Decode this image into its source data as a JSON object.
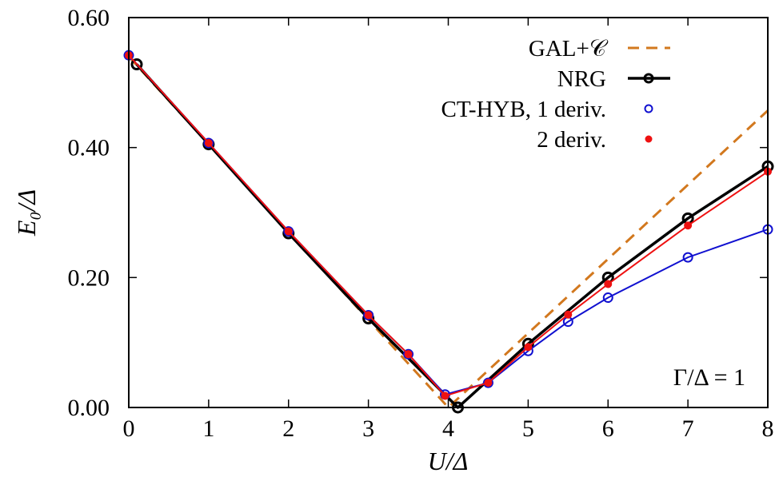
{
  "chart_data": {
    "type": "line",
    "title": "",
    "xlabel": "U/Δ",
    "ylabel": "E₀/Δ",
    "xlim": [
      0,
      8
    ],
    "ylim": [
      0,
      0.6
    ],
    "xticks": [
      0,
      1,
      2,
      3,
      4,
      5,
      6,
      7,
      8
    ],
    "xtick_labels": [
      "0",
      "1",
      "2",
      "3",
      "4",
      "5",
      "6",
      "7",
      "8"
    ],
    "yticks": [
      0,
      0.2,
      0.4,
      0.6
    ],
    "ytick_labels": [
      "0.00",
      "0.20",
      "0.40",
      "0.60"
    ],
    "grid": false,
    "legend_position": "top-right",
    "annotation": "Γ/Δ = 1",
    "series": [
      {
        "name": "GAL+𝒞",
        "style": "dashed",
        "color": "#d2781e",
        "markers": "none",
        "x": [
          0,
          4.0,
          8
        ],
        "y": [
          0.54,
          0.0,
          0.457
        ]
      },
      {
        "name": "NRG",
        "style": "solid-thick",
        "color": "#000000",
        "markers": "open-circle",
        "x": [
          0.1,
          1,
          2,
          3,
          4.12,
          5,
          6,
          7,
          8
        ],
        "y": [
          0.528,
          0.405,
          0.268,
          0.137,
          0.0,
          0.098,
          0.2,
          0.291,
          0.371
        ]
      },
      {
        "name": "CT-HYB, 1 deriv.",
        "style": "solid-thin",
        "color": "#1010d0",
        "markers": "open-circle-small",
        "x": [
          0,
          1,
          2,
          3,
          3.5,
          3.96,
          4.5,
          5,
          5.5,
          6,
          7,
          8
        ],
        "y": [
          0.542,
          0.407,
          0.271,
          0.142,
          0.082,
          0.02,
          0.038,
          0.087,
          0.132,
          0.169,
          0.231,
          0.274
        ]
      },
      {
        "name": "2 deriv.",
        "style": "solid-thin",
        "color": "#ee1111",
        "markers": "filled-circle",
        "x": [
          0,
          1,
          2,
          3,
          3.5,
          3.96,
          4.5,
          5,
          5.5,
          6,
          7,
          8
        ],
        "y": [
          0.542,
          0.407,
          0.271,
          0.142,
          0.082,
          0.018,
          0.038,
          0.093,
          0.143,
          0.19,
          0.28,
          0.363
        ]
      }
    ]
  }
}
